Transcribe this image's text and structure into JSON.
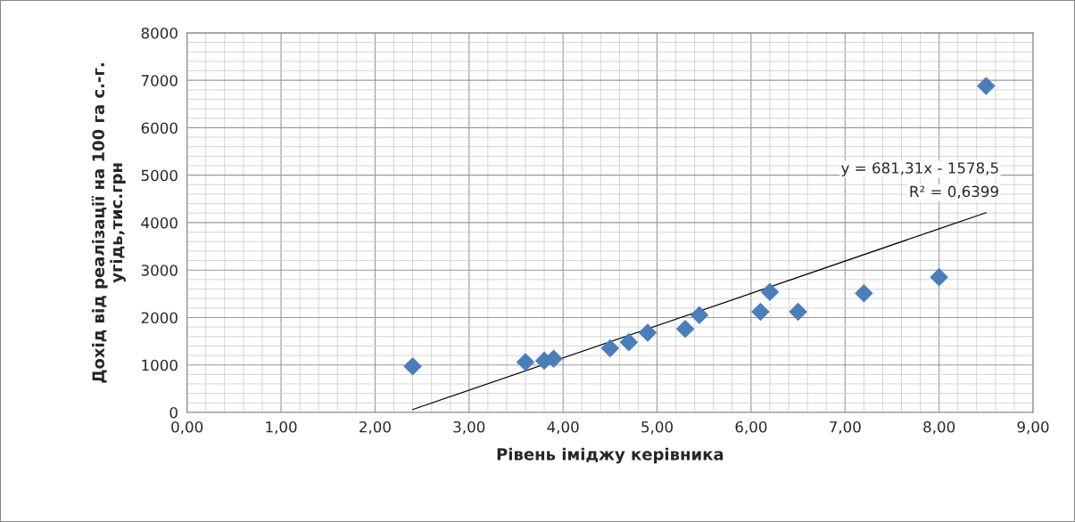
{
  "chart_data": {
    "type": "scatter",
    "xlabel": "Рівень іміджу керівника",
    "ylabel": "Дохід від реалізації на 100 га с.-г. угідь,тис.грн",
    "x": [
      2.4,
      3.6,
      3.8,
      3.9,
      4.5,
      4.7,
      4.9,
      5.3,
      5.45,
      6.1,
      6.2,
      6.5,
      7.2,
      8.0,
      8.5
    ],
    "series": [
      {
        "color": "#4a7ebb",
        "marker": "diamond",
        "values": [
          970,
          1060,
          1090,
          1130,
          1350,
          1480,
          1680,
          1760,
          2050,
          2120,
          2540,
          2120,
          2510,
          2850,
          6880
        ]
      },
      {
        "type": "line",
        "color": "#000000",
        "x": [
          2.4,
          8.5
        ],
        "values": [
          60,
          4210
        ],
        "marker": "none",
        "line_style": "solid"
      }
    ],
    "annotations": [
      "y = 681,31x - 1578,5",
      "R² = 0,6399"
    ],
    "xlim": [
      0,
      9
    ],
    "xticks": [
      {
        "value": 0,
        "label": "0,00"
      },
      {
        "value": 1,
        "label": "1,00"
      },
      {
        "value": 2,
        "label": "2,00"
      },
      {
        "value": 3,
        "label": "3,00"
      },
      {
        "value": 4,
        "label": "4,00"
      },
      {
        "value": 5,
        "label": "5,00"
      },
      {
        "value": 6,
        "label": "6,00"
      },
      {
        "value": 7,
        "label": "7,00"
      },
      {
        "value": 8,
        "label": "8,00"
      },
      {
        "value": 9,
        "label": "9,00"
      }
    ],
    "ylim": [
      0,
      8000
    ],
    "yticks": [
      0,
      1000,
      2000,
      3000,
      4000,
      5000,
      6000,
      7000,
      8000
    ],
    "grid": true,
    "legend": false
  }
}
